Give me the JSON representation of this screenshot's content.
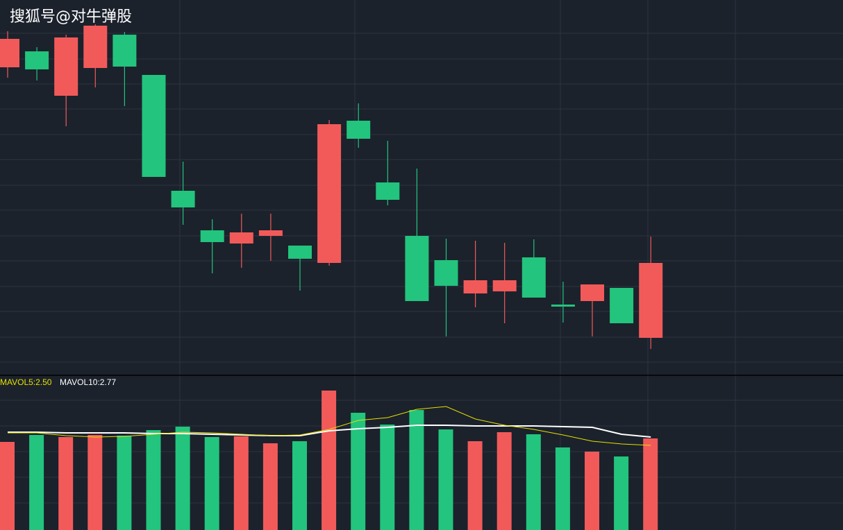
{
  "watermark": "搜狐号@对牛弹股",
  "colors": {
    "background": "#1b222c",
    "grid": "#2c3440",
    "divider": "#000000",
    "up": "#f25a5a",
    "down": "#23c47d",
    "mavol5": "#e8e000",
    "mavol10": "#ffffff"
  },
  "chart_data": [
    {
      "type": "candlestick",
      "grid": true,
      "ylim": [
        -100,
        0
      ],
      "candles": [
        {
          "open": -97,
          "close": -56,
          "high": -45,
          "low": -112,
          "direction": "up"
        },
        {
          "open": -74,
          "close": -100,
          "high": -68,
          "low": -116,
          "direction": "down"
        },
        {
          "open": -138,
          "close": -54,
          "high": -50,
          "low": -182,
          "direction": "up"
        },
        {
          "open": -98,
          "close": -37,
          "high": -35,
          "low": -126,
          "direction": "up"
        },
        {
          "open": -50,
          "close": -96,
          "high": -46,
          "low": -153,
          "direction": "down"
        },
        {
          "open": -108,
          "close": -255,
          "high": -108,
          "low": -255,
          "direction": "down"
        },
        {
          "open": -275,
          "close": -299,
          "high": -233,
          "low": -324,
          "direction": "down"
        },
        {
          "open": -332,
          "close": -349,
          "high": -316,
          "low": -394,
          "direction": "down"
        },
        {
          "open": -351,
          "close": -335,
          "high": -308,
          "low": -386,
          "direction": "up"
        },
        {
          "open": -340,
          "close": -332,
          "high": -308,
          "low": -376,
          "direction": "up"
        },
        {
          "open": -354,
          "close": -373,
          "high": -354,
          "low": -419,
          "direction": "down"
        },
        {
          "open": -379,
          "close": -179,
          "high": -173,
          "low": -383,
          "direction": "up"
        },
        {
          "open": -174,
          "close": -200,
          "high": -149,
          "low": -213,
          "direction": "down"
        },
        {
          "open": -263,
          "close": -288,
          "high": -203,
          "low": -296,
          "direction": "down"
        },
        {
          "open": -340,
          "close": -434,
          "high": -243,
          "low": -434,
          "direction": "down"
        },
        {
          "open": -375,
          "close": -412,
          "high": -344,
          "low": -485,
          "direction": "down"
        },
        {
          "open": -423,
          "close": -404,
          "high": -347,
          "low": -443,
          "direction": "up"
        },
        {
          "open": -420,
          "close": -404,
          "high": -350,
          "low": -466,
          "direction": "up"
        },
        {
          "open": -371,
          "close": -429,
          "high": -345,
          "low": -429,
          "direction": "down"
        },
        {
          "open": -439,
          "close": -442,
          "high": -406,
          "low": -465,
          "direction": "down"
        },
        {
          "open": -434,
          "close": -410,
          "high": -410,
          "low": -485,
          "direction": "up"
        },
        {
          "open": -415,
          "close": -466,
          "high": -415,
          "low": -466,
          "direction": "down"
        },
        {
          "open": -487,
          "close": -379,
          "high": -341,
          "low": -503,
          "direction": "up"
        }
      ]
    },
    {
      "type": "bar",
      "grid": true,
      "indicators": [
        {
          "label": "MAVOL5:2.50",
          "color": "#e8e000"
        },
        {
          "label": "MAVOL10:2.77",
          "color": "#ffffff"
        }
      ],
      "volumes": [
        {
          "value": 127,
          "direction": "up"
        },
        {
          "value": 137,
          "direction": "down"
        },
        {
          "value": 134,
          "direction": "up"
        },
        {
          "value": 137,
          "direction": "up"
        },
        {
          "value": 136,
          "direction": "down"
        },
        {
          "value": 144,
          "direction": "down"
        },
        {
          "value": 149,
          "direction": "down"
        },
        {
          "value": 134,
          "direction": "down"
        },
        {
          "value": 135,
          "direction": "up"
        },
        {
          "value": 125,
          "direction": "up"
        },
        {
          "value": 128,
          "direction": "down"
        },
        {
          "value": 201,
          "direction": "up"
        },
        {
          "value": 169,
          "direction": "down"
        },
        {
          "value": 152,
          "direction": "down"
        },
        {
          "value": 173,
          "direction": "down"
        },
        {
          "value": 145,
          "direction": "down"
        },
        {
          "value": 128,
          "direction": "up"
        },
        {
          "value": 141,
          "direction": "up"
        },
        {
          "value": 138,
          "direction": "down"
        },
        {
          "value": 119,
          "direction": "down"
        },
        {
          "value": 113,
          "direction": "up"
        },
        {
          "value": 106,
          "direction": "down"
        },
        {
          "value": 132,
          "direction": "up"
        }
      ],
      "mavol5_line": [
        140,
        140,
        136,
        134,
        135,
        138,
        141,
        140,
        138,
        136,
        137,
        145,
        158,
        162,
        174,
        178,
        160,
        151,
        145,
        137,
        128,
        124,
        122
      ],
      "mavol10_line": [
        141,
        141,
        140,
        140,
        140,
        139,
        139,
        138,
        137,
        136,
        136,
        143,
        146,
        148,
        151,
        151,
        150,
        150,
        150,
        149,
        148,
        138,
        134
      ]
    }
  ]
}
